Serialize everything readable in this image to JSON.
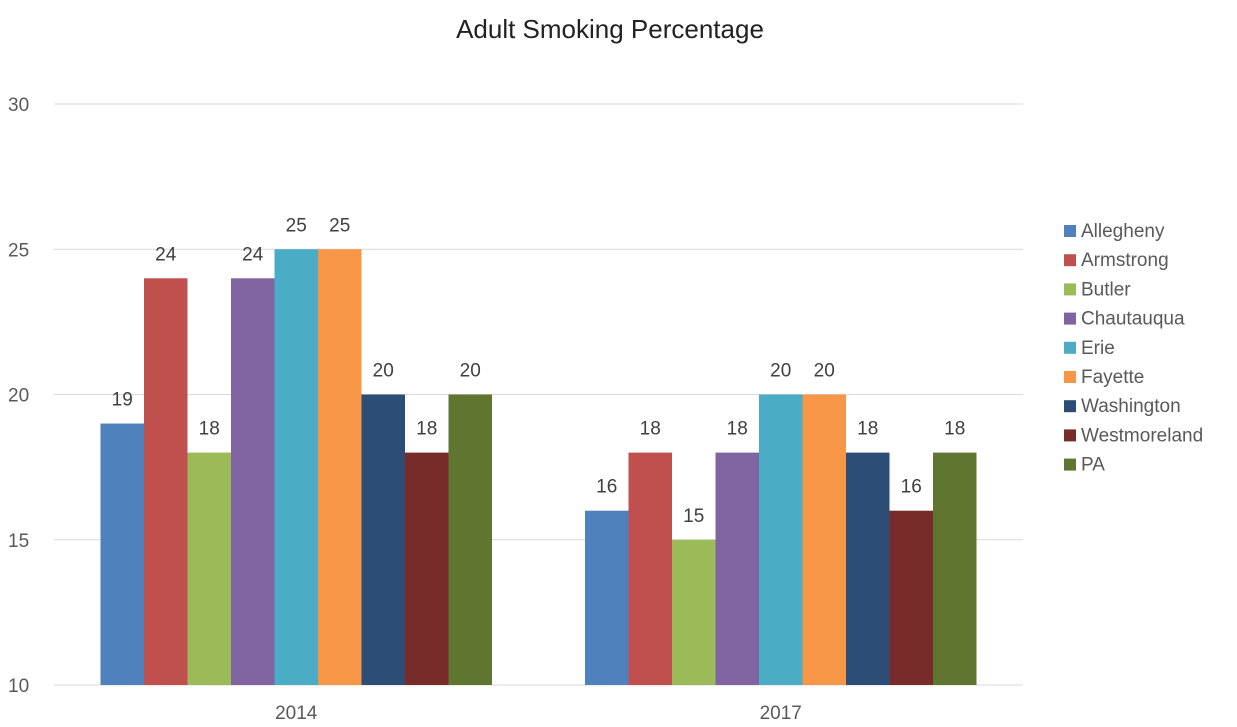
{
  "chart_data": {
    "type": "bar",
    "title": "Adult Smoking Percentage",
    "xlabel": "",
    "ylabel": "",
    "ylim": [
      10,
      30
    ],
    "yticks": [
      10,
      15,
      20,
      25,
      30
    ],
    "grid": true,
    "legend_position": "right",
    "categories": [
      "2014",
      "2017"
    ],
    "series": [
      {
        "name": "Allegheny",
        "color": "#4f81bd",
        "values": [
          19,
          16
        ]
      },
      {
        "name": "Armstrong",
        "color": "#c0504d",
        "values": [
          24,
          18
        ]
      },
      {
        "name": "Butler",
        "color": "#9bbb59",
        "values": [
          18,
          15
        ]
      },
      {
        "name": "Chautauqua",
        "color": "#8064a2",
        "values": [
          24,
          18
        ]
      },
      {
        "name": "Erie",
        "color": "#4bacc6",
        "values": [
          25,
          20
        ]
      },
      {
        "name": "Fayette",
        "color": "#f79646",
        "values": [
          25,
          20
        ]
      },
      {
        "name": "Washington",
        "color": "#2c4d75",
        "values": [
          20,
          18
        ]
      },
      {
        "name": "Westmoreland",
        "color": "#772c2a",
        "values": [
          18,
          16
        ]
      },
      {
        "name": "PA",
        "color": "#5f7530",
        "values": [
          20,
          18
        ]
      }
    ]
  }
}
